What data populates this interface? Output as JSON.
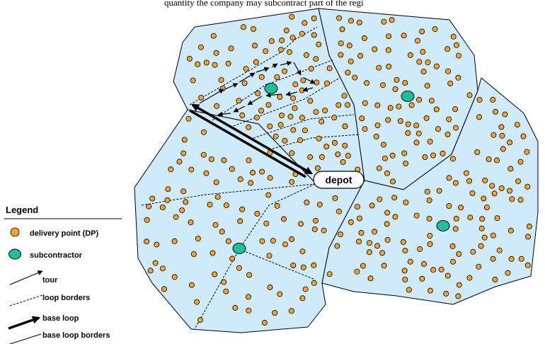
{
  "colors": {
    "region_fill": "#cfeafa",
    "delivery_point": "#f5a32a",
    "subcontractor": "#1fbf9b",
    "line": "#000000",
    "background": "#ffffff"
  },
  "top_caption_fragment": "quantity the company may subcontract part of the regi",
  "depot_label": "depot",
  "legend": {
    "title": "Legend",
    "items": [
      {
        "label": "delivery point (DP)",
        "icon": "orange-circle"
      },
      {
        "label": "subcontractor",
        "icon": "teal-circle"
      },
      {
        "label": "tour",
        "icon": "thin-arrow"
      },
      {
        "label": "loop borders",
        "icon": "dashed-line"
      },
      {
        "label": "base loop",
        "icon": "thick-arrow"
      },
      {
        "label": "base loop borders",
        "icon": "thin-line"
      }
    ]
  }
}
